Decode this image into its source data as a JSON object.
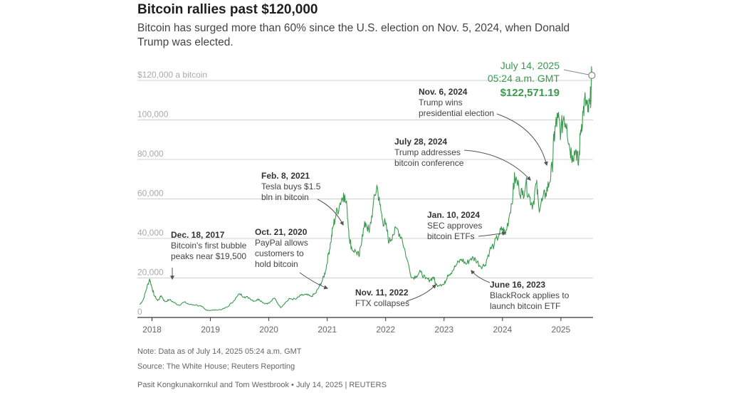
{
  "title": "Bitcoin rallies past $120,000",
  "subtitle": "Bitcoin has surged more than 60% since the U.S. election on Nov. 5, 2024, when Donald Trump was elected.",
  "note": "Note: Data as of July 14, 2025 05:24 a.m. GMT",
  "source": "Source: The White House; Reuters Reporting",
  "credit": "Pasit Kongkunakornkul and Tom Westbrook • July 14, 2025 | REUTERS",
  "colors": {
    "line": "#3a9a4e",
    "grid": "#d0d0d0",
    "axis": "#333333"
  },
  "chart_data": {
    "type": "line",
    "title": "Bitcoin rallies past $120,000",
    "xlabel": "",
    "ylabel": "$ a bitcoin",
    "xlim": [
      2017.75,
      2025.55
    ],
    "ylim": [
      0,
      120000
    ],
    "x_ticks": [
      {
        "value": 2018,
        "label": "2018"
      },
      {
        "value": 2019,
        "label": "2019"
      },
      {
        "value": 2020,
        "label": "2020"
      },
      {
        "value": 2021,
        "label": "2021"
      },
      {
        "value": 2022,
        "label": "2022"
      },
      {
        "value": 2023,
        "label": "2023"
      },
      {
        "value": 2024,
        "label": "2024"
      },
      {
        "value": 2025,
        "label": "2025"
      }
    ],
    "y_ticks": [
      {
        "value": 120000,
        "label": "$120,000 a bitcoin"
      },
      {
        "value": 100000,
        "label": "100,000"
      },
      {
        "value": 80000,
        "label": "80,000"
      },
      {
        "value": 60000,
        "label": "60,000"
      },
      {
        "value": 40000,
        "label": "40,000"
      },
      {
        "value": 20000,
        "label": "20,000"
      },
      {
        "value": 0,
        "label": "0"
      }
    ],
    "series": [
      {
        "name": "Bitcoin price",
        "points": [
          [
            2017.79,
            6500
          ],
          [
            2017.85,
            9000
          ],
          [
            2017.9,
            14000
          ],
          [
            2017.96,
            19500
          ],
          [
            2018.0,
            15000
          ],
          [
            2018.04,
            11000
          ],
          [
            2018.1,
            8500
          ],
          [
            2018.16,
            11000
          ],
          [
            2018.22,
            8000
          ],
          [
            2018.3,
            9000
          ],
          [
            2018.38,
            7500
          ],
          [
            2018.46,
            6200
          ],
          [
            2018.55,
            7800
          ],
          [
            2018.65,
            6500
          ],
          [
            2018.75,
            6400
          ],
          [
            2018.85,
            5500
          ],
          [
            2018.92,
            3800
          ],
          [
            2019.0,
            3600
          ],
          [
            2019.1,
            3800
          ],
          [
            2019.2,
            4100
          ],
          [
            2019.3,
            5500
          ],
          [
            2019.4,
            8500
          ],
          [
            2019.5,
            12000
          ],
          [
            2019.58,
            10500
          ],
          [
            2019.66,
            10000
          ],
          [
            2019.75,
            8300
          ],
          [
            2019.83,
            9300
          ],
          [
            2019.92,
            7200
          ],
          [
            2020.0,
            7200
          ],
          [
            2020.1,
            9800
          ],
          [
            2020.2,
            5000
          ],
          [
            2020.28,
            7500
          ],
          [
            2020.36,
            9500
          ],
          [
            2020.46,
            9200
          ],
          [
            2020.55,
            11200
          ],
          [
            2020.64,
            11500
          ],
          [
            2020.72,
            10600
          ],
          [
            2020.8,
            12200
          ],
          [
            2020.86,
            15500
          ],
          [
            2020.92,
            19000
          ],
          [
            2020.97,
            23500
          ],
          [
            2021.02,
            32000
          ],
          [
            2021.06,
            38000
          ],
          [
            2021.1,
            46000
          ],
          [
            2021.15,
            52000
          ],
          [
            2021.22,
            58000
          ],
          [
            2021.28,
            63000
          ],
          [
            2021.34,
            55000
          ],
          [
            2021.38,
            40000
          ],
          [
            2021.42,
            35000
          ],
          [
            2021.5,
            33000
          ],
          [
            2021.55,
            31000
          ],
          [
            2021.6,
            42000
          ],
          [
            2021.66,
            48000
          ],
          [
            2021.72,
            43000
          ],
          [
            2021.78,
            55000
          ],
          [
            2021.85,
            67000
          ],
          [
            2021.9,
            57000
          ],
          [
            2021.95,
            49000
          ],
          [
            2022.0,
            47000
          ],
          [
            2022.06,
            38000
          ],
          [
            2022.12,
            42000
          ],
          [
            2022.2,
            45000
          ],
          [
            2022.28,
            40000
          ],
          [
            2022.36,
            30000
          ],
          [
            2022.45,
            20000
          ],
          [
            2022.52,
            21000
          ],
          [
            2022.6,
            23000
          ],
          [
            2022.68,
            19500
          ],
          [
            2022.76,
            19000
          ],
          [
            2022.82,
            20500
          ],
          [
            2022.86,
            16500
          ],
          [
            2022.94,
            16800
          ],
          [
            2023.0,
            16600
          ],
          [
            2023.06,
            21500
          ],
          [
            2023.14,
            23500
          ],
          [
            2023.22,
            27000
          ],
          [
            2023.3,
            29500
          ],
          [
            2023.38,
            27000
          ],
          [
            2023.46,
            30000
          ],
          [
            2023.54,
            29500
          ],
          [
            2023.62,
            26000
          ],
          [
            2023.7,
            26500
          ],
          [
            2023.78,
            34000
          ],
          [
            2023.86,
            37000
          ],
          [
            2023.94,
            42000
          ],
          [
            2024.0,
            45000
          ],
          [
            2024.05,
            42000
          ],
          [
            2024.12,
            52000
          ],
          [
            2024.18,
            63000
          ],
          [
            2024.21,
            71000
          ],
          [
            2024.28,
            66000
          ],
          [
            2024.34,
            62000
          ],
          [
            2024.4,
            68000
          ],
          [
            2024.46,
            61000
          ],
          [
            2024.52,
            57000
          ],
          [
            2024.58,
            68000
          ],
          [
            2024.62,
            56000
          ],
          [
            2024.68,
            59000
          ],
          [
            2024.74,
            63000
          ],
          [
            2024.8,
            68000
          ],
          [
            2024.85,
            76000
          ],
          [
            2024.88,
            90000
          ],
          [
            2024.91,
            97000
          ],
          [
            2024.95,
            101000
          ],
          [
            2025.0,
            94000
          ],
          [
            2025.05,
            102000
          ],
          [
            2025.1,
            98000
          ],
          [
            2025.15,
            86000
          ],
          [
            2025.2,
            82000
          ],
          [
            2025.26,
            85000
          ],
          [
            2025.3,
            77000
          ],
          [
            2025.34,
            95000
          ],
          [
            2025.38,
            104000
          ],
          [
            2025.42,
            110000
          ],
          [
            2025.46,
            104000
          ],
          [
            2025.5,
            108000
          ],
          [
            2025.53,
            122571
          ]
        ]
      }
    ],
    "highlight": {
      "date": "July 14, 2025",
      "time": "05:24 a.m. GMT",
      "value_label": "$122,571.19",
      "value": 122571.19
    },
    "annotations": [
      {
        "date": "Dec. 18, 2017",
        "lines": [
          "Bitcoin's first bubble",
          "peaks near $19,500"
        ]
      },
      {
        "date": "Oct. 21, 2020",
        "lines": [
          "PayPal allows",
          "customers to",
          "hold bitcoin"
        ]
      },
      {
        "date": "Feb. 8, 2021",
        "lines": [
          "Tesla buys $1.5",
          "bln in bitcoin"
        ]
      },
      {
        "date": "Nov. 11, 2022",
        "lines": [
          "FTX collapses"
        ]
      },
      {
        "date": "June 16, 2023",
        "lines": [
          "BlackRock applies to",
          "launch bitcoin ETF"
        ]
      },
      {
        "date": "Jan. 10, 2024",
        "lines": [
          "SEC approves",
          "bitcoin ETFs"
        ]
      },
      {
        "date": "July 28, 2024",
        "lines": [
          "Trump addresses",
          "bitcoin conference"
        ]
      },
      {
        "date": "Nov. 6, 2024",
        "lines": [
          "Trump wins",
          "presidential election"
        ]
      }
    ]
  }
}
